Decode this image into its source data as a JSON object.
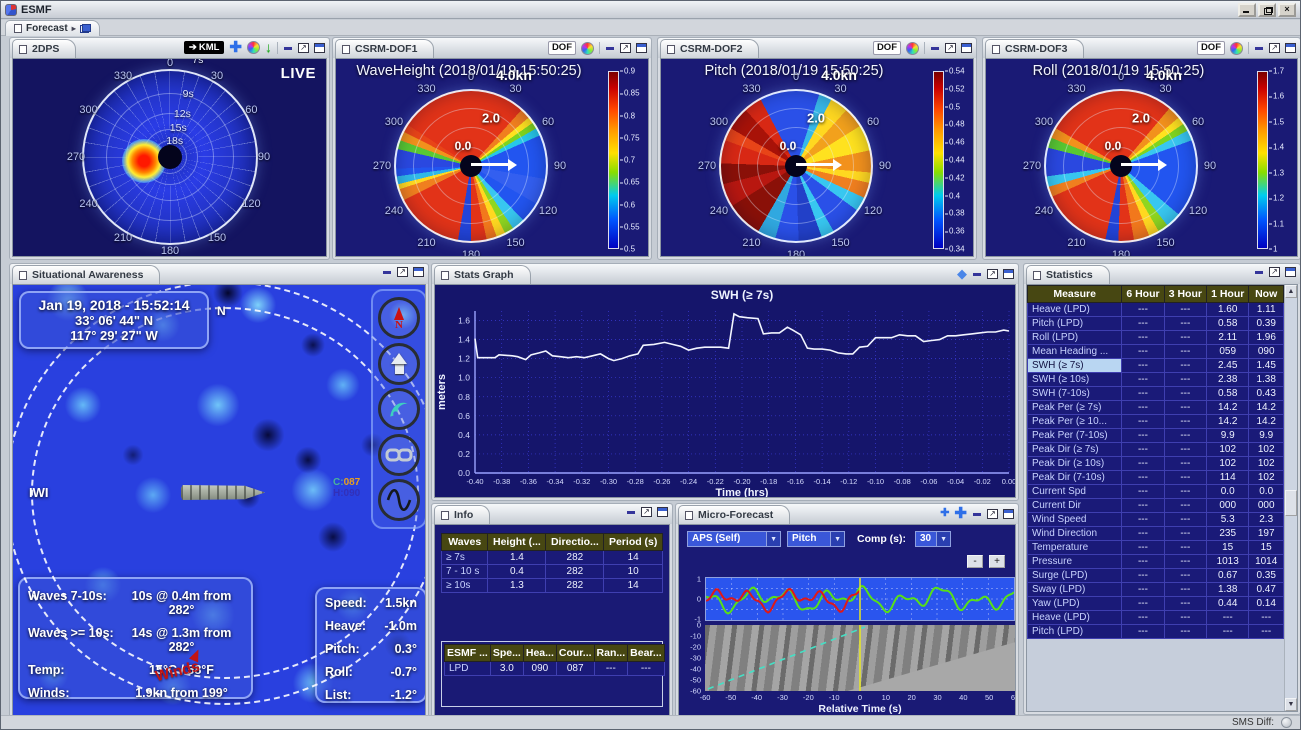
{
  "window": {
    "title": "ESMF"
  },
  "forecast_bar": {
    "tab_label": "Forecast"
  },
  "status_bar": {
    "sms_diff_label": "SMS Diff:"
  },
  "colors": {
    "navy_panel": "#1a1a75",
    "map_blue": "#2940df",
    "table_header_olive": "#474712",
    "selected_row": "#b9d6f2",
    "accent_blue": "#2e6fe8",
    "line_white": "#f2f5ff",
    "forecast_green": "#58e018",
    "observed_red": "#e01818",
    "marker_yellow": "#e8e820"
  },
  "panels": {
    "dps": {
      "tab": "2DPS",
      "kml_label": "KML",
      "live_label": "LIVE",
      "angle_labels": [
        0,
        30,
        60,
        90,
        120,
        150,
        180,
        210,
        240,
        270,
        300,
        330
      ],
      "period_ring_labels": [
        "7s",
        "9s",
        "12s",
        "15s",
        "18s"
      ]
    },
    "dof1": {
      "tab": "CSRM-DOF1",
      "dof_button": "DOF",
      "title": "WaveHeight (2018/01/19 15:50:25)",
      "center_speed": "0.0",
      "mid_speed": "2.0",
      "outer_speed": "4.0kn",
      "angle_labels": [
        0,
        30,
        60,
        90,
        120,
        150,
        180,
        210,
        240,
        270,
        300,
        330
      ],
      "colorbar_ticks": [
        "0.9",
        "0.85",
        "0.8",
        "0.75",
        "0.7",
        "0.65",
        "0.6",
        "0.55",
        "0.5"
      ]
    },
    "dof2": {
      "tab": "CSRM-DOF2",
      "dof_button": "DOF",
      "title": "Pitch (2018/01/19 15:50:25)",
      "center_speed": "0.0",
      "mid_speed": "2.0",
      "outer_speed": "4.0kn",
      "angle_labels": [
        0,
        30,
        60,
        90,
        120,
        150,
        180,
        210,
        240,
        270,
        300,
        330
      ],
      "colorbar_ticks": [
        "0.54",
        "0.52",
        "0.5",
        "0.48",
        "0.46",
        "0.44",
        "0.42",
        "0.4",
        "0.38",
        "0.36",
        "0.34"
      ]
    },
    "dof3": {
      "tab": "CSRM-DOF3",
      "dof_button": "DOF",
      "title": "Roll (2018/01/19 15:50:25)",
      "center_speed": "0.0",
      "mid_speed": "2.0",
      "outer_speed": "4.0kn",
      "angle_labels": [
        0,
        30,
        60,
        90,
        120,
        150,
        180,
        210,
        240,
        270,
        300,
        330
      ],
      "colorbar_ticks": [
        "1.7",
        "1.6",
        "1.5",
        "1.4",
        "1.3",
        "1.2",
        "1.1",
        "1"
      ]
    },
    "situational": {
      "tab": "Situational Awareness",
      "datetime_line": "Jan 19, 2018 - 15:52:14",
      "latitude": "33° 06' 44\" N",
      "longitude": "117° 29' 27\" W",
      "north_label": "N",
      "iwi_label": "IWI",
      "course_label": "C:",
      "course_value": "087",
      "heading_text": "H:090",
      "winds_label": "Winds",
      "waves_box": [
        {
          "label": "Waves 7-10s:",
          "value": "10s @ 0.4m from 282°"
        },
        {
          "label": "Waves >= 10s:",
          "value": "14s @ 1.3m from 282°"
        },
        {
          "label": "Temp:",
          "value": "15°C / 58°F"
        },
        {
          "label": "Winds:",
          "value": "1.9kn from 199°"
        }
      ],
      "motion_box": [
        {
          "label": "Speed:",
          "value": "1.5kn"
        },
        {
          "label": "Heave:",
          "value": "-1.0m"
        },
        {
          "label": "Pitch:",
          "value": "0.3°"
        },
        {
          "label": "Roll:",
          "value": "-0.7°"
        },
        {
          "label": "List:",
          "value": "-1.2°"
        }
      ]
    },
    "stats_graph": {
      "tab": "Stats Graph"
    },
    "statistics": {
      "tab": "Statistics",
      "columns": [
        "Measure",
        "6 Hour",
        "3 Hour",
        "1 Hour",
        "Now"
      ],
      "selected_row": 4,
      "rows": [
        [
          "Heave (LPD)",
          "---",
          "---",
          "1.60",
          "1.11"
        ],
        [
          "Pitch (LPD)",
          "---",
          "---",
          "0.58",
          "0.39"
        ],
        [
          "Roll (LPD)",
          "---",
          "---",
          "2.11",
          "1.96"
        ],
        [
          "Mean Heading ...",
          "---",
          "---",
          "059",
          "090"
        ],
        [
          "SWH (≥ 7s)",
          "---",
          "---",
          "2.45",
          "1.45"
        ],
        [
          "SWH (≥ 10s)",
          "---",
          "---",
          "2.38",
          "1.38"
        ],
        [
          "SWH (7-10s)",
          "---",
          "---",
          "0.58",
          "0.43"
        ],
        [
          "Peak Per (≥ 7s)",
          "---",
          "---",
          "14.2",
          "14.2"
        ],
        [
          "Peak Per (≥ 10...",
          "---",
          "---",
          "14.2",
          "14.2"
        ],
        [
          "Peak Per (7-10s)",
          "---",
          "---",
          "9.9",
          "9.9"
        ],
        [
          "Peak Dir (≥ 7s)",
          "---",
          "---",
          "102",
          "102"
        ],
        [
          "Peak Dir (≥ 10s)",
          "---",
          "---",
          "102",
          "102"
        ],
        [
          "Peak Dir (7-10s)",
          "---",
          "---",
          "114",
          "102"
        ],
        [
          "Current Spd",
          "---",
          "---",
          "0.0",
          "0.0"
        ],
        [
          "Current Dir",
          "---",
          "---",
          "000",
          "000"
        ],
        [
          "Wind Speed",
          "---",
          "---",
          "5.3",
          "2.3"
        ],
        [
          "Wind Direction",
          "---",
          "---",
          "235",
          "197"
        ],
        [
          "Temperature",
          "---",
          "---",
          "15",
          "15"
        ],
        [
          "Pressure",
          "---",
          "---",
          "1013",
          "1014"
        ],
        [
          "Surge (LPD)",
          "---",
          "---",
          "0.67",
          "0.35"
        ],
        [
          "Sway (LPD)",
          "---",
          "---",
          "1.38",
          "0.47"
        ],
        [
          "Yaw (LPD)",
          "---",
          "---",
          "0.44",
          "0.14"
        ],
        [
          "Heave (LPD)",
          "---",
          "---",
          "---",
          "---"
        ],
        [
          "Pitch (LPD)",
          "---",
          "---",
          "---",
          "---"
        ]
      ]
    },
    "info": {
      "tab": "Info",
      "waves_table": {
        "columns": [
          "Waves",
          "Height (...",
          "Directio...",
          "Period (s)"
        ],
        "rows": [
          [
            "≥ 7s",
            "1.4",
            "282",
            "14"
          ],
          [
            "7 - 10 s",
            "0.4",
            "282",
            "10"
          ],
          [
            "≥ 10s",
            "1.3",
            "282",
            "14"
          ]
        ]
      },
      "esmf_table": {
        "columns": [
          "ESMF ...",
          "Spe...",
          "Hea...",
          "Cour...",
          "Ran...",
          "Bear..."
        ],
        "rows": [
          [
            "LPD",
            "3.0",
            "090",
            "087",
            "---",
            "---"
          ]
        ]
      }
    },
    "micro_forecast": {
      "tab": "Micro-Forecast",
      "controls": {
        "source_select": "APS (Self)",
        "dof_select": "Pitch",
        "comp_label": "Comp (s):",
        "comp_select": "30",
        "zoom_out_label": "-",
        "zoom_in_label": "+"
      },
      "top_yticks": [
        "1",
        "0",
        "-1"
      ],
      "waterfall_yticks": [
        "0",
        "-10",
        "-20",
        "-30",
        "-40",
        "-50",
        "-60"
      ],
      "xticks": [
        "-60",
        "-50",
        "-40",
        "-30",
        "-20",
        "-10",
        "0",
        "10",
        "20",
        "30",
        "40",
        "50",
        "60"
      ],
      "xlabel": "Relative Time (s)"
    }
  },
  "chart_data": [
    {
      "id": "swh_timeseries",
      "type": "line",
      "title": "SWH (≥ 7s)",
      "xlabel": "Time (hrs)",
      "ylabel": "meters",
      "xlim": [
        -0.4,
        0.0
      ],
      "ylim": [
        0.0,
        1.7
      ],
      "grid": true,
      "legend": "none",
      "line_color": "#f2f5ff",
      "xticks": [
        "-0.40",
        "-0.38",
        "-0.36",
        "-0.34",
        "-0.32",
        "-0.30",
        "-0.28",
        "-0.26",
        "-0.24",
        "-0.22",
        "-0.20",
        "-0.18",
        "-0.16",
        "-0.14",
        "-0.12",
        "-0.10",
        "-0.08",
        "-0.06",
        "-0.04",
        "-0.02",
        "0.00"
      ],
      "yticks": [
        0.0,
        0.2,
        0.4,
        0.6,
        0.8,
        1.0,
        1.2,
        1.4,
        1.6
      ],
      "x": [
        -0.4,
        -0.398,
        -0.39,
        -0.385,
        -0.382,
        -0.372,
        -0.368,
        -0.362,
        -0.358,
        -0.352,
        -0.347,
        -0.342,
        -0.336,
        -0.33,
        -0.324,
        -0.318,
        -0.312,
        -0.306,
        -0.3,
        -0.296,
        -0.29,
        -0.284,
        -0.278,
        -0.274,
        -0.266,
        -0.258,
        -0.252,
        -0.246,
        -0.24,
        -0.234,
        -0.228,
        -0.222,
        -0.216,
        -0.21,
        -0.206,
        -0.202,
        -0.196,
        -0.188,
        -0.184,
        -0.178,
        -0.172,
        -0.166,
        -0.162,
        -0.156,
        -0.151,
        -0.146,
        -0.14,
        -0.134,
        -0.128,
        -0.122,
        -0.117,
        -0.112,
        -0.106,
        -0.1,
        -0.094,
        -0.088,
        -0.082,
        -0.076,
        -0.07,
        -0.064,
        -0.058,
        -0.052,
        -0.046,
        -0.04,
        -0.034,
        -0.028,
        -0.022,
        -0.016,
        -0.01,
        -0.004,
        0.0
      ],
      "y": [
        1.41,
        1.21,
        1.21,
        1.21,
        1.24,
        1.23,
        1.22,
        1.19,
        1.24,
        1.26,
        1.28,
        1.23,
        1.22,
        1.21,
        1.22,
        1.21,
        1.23,
        1.25,
        1.2,
        1.18,
        1.2,
        1.23,
        1.25,
        1.34,
        1.35,
        1.37,
        1.35,
        1.33,
        1.29,
        1.31,
        1.32,
        1.32,
        1.32,
        1.31,
        1.67,
        1.64,
        1.63,
        1.62,
        1.46,
        1.47,
        1.47,
        1.53,
        1.5,
        1.45,
        1.31,
        1.3,
        1.3,
        1.29,
        1.26,
        1.25,
        1.25,
        1.32,
        1.33,
        1.42,
        1.42,
        1.42,
        1.45,
        1.44,
        1.44,
        1.38,
        1.39,
        1.4,
        1.44,
        1.44,
        1.45,
        1.46,
        1.47,
        1.48,
        1.48,
        1.5,
        1.49
      ]
    },
    {
      "id": "micro_forecast_signal",
      "type": "line",
      "xlabel": "Relative Time (s)",
      "xlim": [
        -60,
        60
      ],
      "ylim": [
        -1,
        1
      ],
      "series": [
        {
          "name": "observed",
          "color": "#e01818",
          "x_end": 0
        },
        {
          "name": "forecast",
          "color": "#58e018",
          "x_end": 60
        }
      ]
    },
    {
      "id": "micro_forecast_waterfall",
      "type": "heatmap",
      "xlabel": "Relative Time (s)",
      "xlim": [
        -60,
        60
      ],
      "ylim": [
        -60,
        0
      ]
    }
  ]
}
